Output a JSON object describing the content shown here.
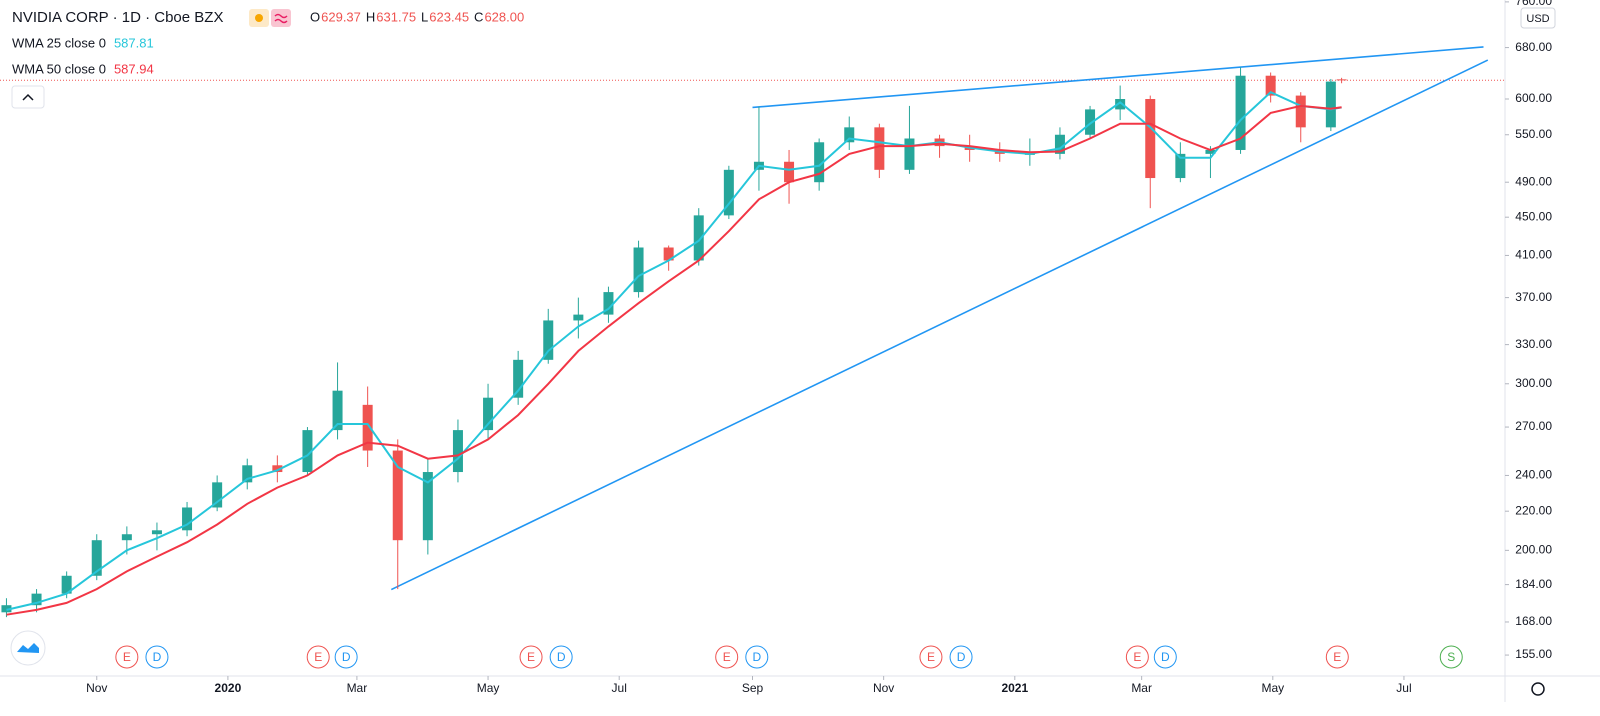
{
  "chart_data": {
    "type": "candlestick",
    "title": "NVIDIA CORP · 1D · Cboe BZX",
    "ohlc": [
      {
        "label": "O",
        "value": "629.37"
      },
      {
        "label": "H",
        "value": "631.75"
      },
      {
        "label": "L",
        "value": "623.45"
      },
      {
        "label": "C",
        "value": "628.00"
      }
    ],
    "currency": "USD",
    "log_scale": true,
    "grid": false,
    "up_color": "#26a69a",
    "down_color": "#ef5350",
    "x": [
      "2019-09-20",
      "2019-10-04",
      "2019-10-18",
      "2019-11-01",
      "2019-11-15",
      "2019-11-29",
      "2019-12-13",
      "2019-12-27",
      "2020-01-10",
      "2020-01-24",
      "2020-02-07",
      "2020-02-21",
      "2020-03-06",
      "2020-03-20",
      "2020-04-03",
      "2020-04-17",
      "2020-05-01",
      "2020-05-15",
      "2020-05-29",
      "2020-06-12",
      "2020-06-26",
      "2020-07-10",
      "2020-07-24",
      "2020-08-07",
      "2020-08-21",
      "2020-09-04",
      "2020-09-18",
      "2020-10-02",
      "2020-10-16",
      "2020-10-30",
      "2020-11-13",
      "2020-11-27",
      "2020-12-11",
      "2020-12-25",
      "2021-01-08",
      "2021-01-22",
      "2021-02-05",
      "2021-02-19",
      "2021-03-05",
      "2021-03-19",
      "2021-04-02",
      "2021-04-16",
      "2021-04-30",
      "2021-05-14",
      "2021-05-28",
      "2021-06-02"
    ],
    "open": [
      172,
      175,
      180,
      188,
      205,
      208,
      210,
      222,
      236,
      246,
      242,
      268,
      285,
      255,
      205,
      242,
      268,
      290,
      318,
      350,
      355,
      375,
      418,
      405,
      452,
      505,
      515,
      490,
      540,
      560,
      505,
      545,
      535,
      530,
      525,
      525,
      550,
      585,
      600,
      495,
      525,
      530,
      635,
      605,
      560,
      629.37
    ],
    "high": [
      178,
      182,
      190,
      208,
      212,
      214,
      225,
      240,
      250,
      252,
      270,
      316,
      298,
      262,
      250,
      275,
      300,
      325,
      360,
      370,
      380,
      425,
      420,
      460,
      510,
      589,
      530,
      545,
      575,
      565,
      590,
      550,
      550,
      540,
      545,
      560,
      590,
      620,
      605,
      540,
      535,
      648,
      640,
      610,
      630,
      631.75
    ],
    "low": [
      170,
      172,
      178,
      186,
      198,
      200,
      207,
      220,
      232,
      236,
      240,
      262,
      245,
      182,
      198,
      236,
      262,
      285,
      315,
      335,
      348,
      370,
      395,
      400,
      448,
      480,
      465,
      480,
      530,
      495,
      500,
      520,
      515,
      515,
      510,
      518,
      545,
      570,
      460,
      490,
      495,
      525,
      595,
      540,
      555,
      623.45
    ],
    "close": [
      175,
      180,
      188,
      205,
      208,
      210,
      222,
      236,
      246,
      242,
      268,
      295,
      255,
      205,
      242,
      268,
      290,
      318,
      350,
      355,
      375,
      418,
      405,
      452,
      505,
      515,
      490,
      540,
      560,
      505,
      545,
      535,
      530,
      525,
      525,
      550,
      585,
      600,
      495,
      525,
      530,
      635,
      605,
      560,
      626,
      628
    ],
    "series": [
      {
        "name": "WMA 25 close 0",
        "color": "#26c6da",
        "last_label": "587.81",
        "values": [
          173,
          176,
          180,
          190,
          200,
          206,
          213,
          225,
          238,
          243,
          252,
          272,
          272,
          245,
          236,
          250,
          272,
          295,
          325,
          345,
          360,
          390,
          405,
          425,
          465,
          510,
          505,
          510,
          545,
          540,
          535,
          540,
          533,
          528,
          525,
          532,
          565,
          595,
          560,
          520,
          520,
          570,
          610,
          590,
          585,
          587.81
        ]
      },
      {
        "name": "WMA 50 close 0",
        "color": "#f23645",
        "last_label": "587.94",
        "values": [
          171,
          173,
          176,
          182,
          190,
          197,
          204,
          213,
          224,
          233,
          240,
          252,
          260,
          258,
          250,
          252,
          262,
          278,
          300,
          325,
          345,
          365,
          385,
          405,
          435,
          470,
          490,
          500,
          525,
          535,
          535,
          538,
          535,
          530,
          527,
          528,
          545,
          565,
          565,
          545,
          530,
          545,
          580,
          590,
          586,
          587.94
        ]
      }
    ],
    "trendlines": [
      {
        "color": "#2196f3",
        "x": [
          "2020-09-01",
          "2021-08-07"
        ],
        "values": [
          587.8,
          681
        ]
      },
      {
        "color": "#2196f3",
        "x": [
          "2020-03-17",
          "2021-08-09"
        ],
        "values": [
          181.8,
          659.7
        ]
      }
    ],
    "events": [
      {
        "x": "2019-11-15",
        "label": "E"
      },
      {
        "x": "2019-11-29",
        "label": "D"
      },
      {
        "x": "2020-02-12",
        "label": "E"
      },
      {
        "x": "2020-02-25",
        "label": "D"
      },
      {
        "x": "2020-05-21",
        "label": "E"
      },
      {
        "x": "2020-06-04",
        "label": "D"
      },
      {
        "x": "2020-08-20",
        "label": "E"
      },
      {
        "x": "2020-09-03",
        "label": "D"
      },
      {
        "x": "2020-11-23",
        "label": "E"
      },
      {
        "x": "2020-12-07",
        "label": "D"
      },
      {
        "x": "2021-02-27",
        "label": "E"
      },
      {
        "x": "2021-03-12",
        "label": "D"
      },
      {
        "x": "2021-05-31",
        "label": "E"
      },
      {
        "x": "2021-07-23",
        "label": "S"
      }
    ],
    "xlim": [
      "2019-09-17",
      "2021-08-17"
    ],
    "xticks": [
      {
        "value": "2019-11-01",
        "label": "Nov"
      },
      {
        "value": "2020-01-01",
        "label": "2020"
      },
      {
        "value": "2020-03-01",
        "label": "Mar"
      },
      {
        "value": "2020-05-01",
        "label": "May"
      },
      {
        "value": "2020-07-01",
        "label": "Jul"
      },
      {
        "value": "2020-09-01",
        "label": "Sep"
      },
      {
        "value": "2020-11-01",
        "label": "Nov"
      },
      {
        "value": "2021-01-01",
        "label": "2021"
      },
      {
        "value": "2021-03-01",
        "label": "Mar"
      },
      {
        "value": "2021-05-01",
        "label": "May"
      },
      {
        "value": "2021-07-01",
        "label": "Jul"
      }
    ],
    "ylim": [
      147.3,
      763.5
    ],
    "yticks": [
      {
        "value": 155,
        "label": "155.00"
      },
      {
        "value": 168,
        "label": "168.00"
      },
      {
        "value": 184,
        "label": "184.00"
      },
      {
        "value": 200,
        "label": "200.00"
      },
      {
        "value": 220,
        "label": "220.00"
      },
      {
        "value": 240,
        "label": "240.00"
      },
      {
        "value": 270,
        "label": "270.00"
      },
      {
        "value": 300,
        "label": "300.00"
      },
      {
        "value": 330,
        "label": "330.00"
      },
      {
        "value": 370,
        "label": "370.00"
      },
      {
        "value": 410,
        "label": "410.00"
      },
      {
        "value": 450,
        "label": "450.00"
      },
      {
        "value": 490,
        "label": "490.00"
      },
      {
        "value": 550,
        "label": "550.00"
      },
      {
        "value": 600,
        "label": "600.00"
      },
      {
        "value": 680,
        "label": "680.00"
      },
      {
        "value": 760,
        "label": "760.00"
      }
    ]
  }
}
